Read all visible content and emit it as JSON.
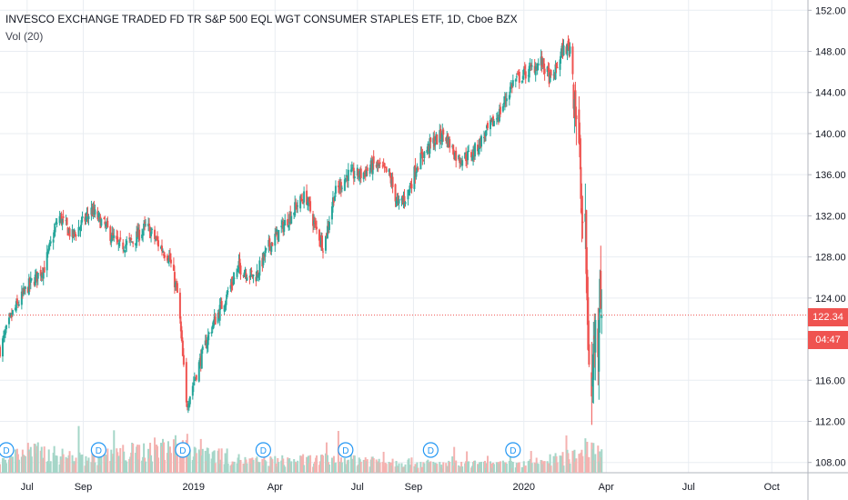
{
  "chart_data": {
    "type": "candlestick",
    "title": "INVESCO EXCHANGE TRADED FD TR S&P 500 EQL WGT CONSUMER STAPLES ETF, 1D, Cboe BZX",
    "indicator": "Vol (20)",
    "ylim": [
      107,
      153
    ],
    "y_ticks": [
      "108.00",
      "112.00",
      "116.00",
      "120.00",
      "124.00",
      "128.00",
      "132.00",
      "136.00",
      "140.00",
      "144.00",
      "148.00",
      "152.00"
    ],
    "y_tick_values": [
      108,
      112,
      116,
      120,
      124,
      128,
      132,
      136,
      140,
      144,
      148,
      152
    ],
    "x_ticks": [
      "Jul",
      "Sep",
      "2019",
      "Apr",
      "Jul",
      "Sep",
      "2020",
      "Apr",
      "Jul",
      "Oct"
    ],
    "x_tick_dates": [
      "2018-07-01",
      "2018-09-01",
      "2019-01-01",
      "2019-04-01",
      "2019-07-01",
      "2019-09-01",
      "2020-01-01",
      "2020-04-01",
      "2020-07-01",
      "2020-10-01"
    ],
    "x_start": "2018-06-01",
    "x_end": "2020-11-10",
    "last_price": "122.34",
    "countdown": "04:47",
    "last_price_value": 122.34,
    "grid": true,
    "price_path": [
      [
        "2018-06-01",
        119
      ],
      [
        "2018-06-15",
        122.5
      ],
      [
        "2018-07-01",
        125
      ],
      [
        "2018-07-20",
        127
      ],
      [
        "2018-08-05",
        132
      ],
      [
        "2018-08-20",
        130
      ],
      [
        "2018-09-10",
        132.5
      ],
      [
        "2018-09-25",
        131
      ],
      [
        "2018-10-10",
        129
      ],
      [
        "2018-10-25",
        129.5
      ],
      [
        "2018-11-10",
        131
      ],
      [
        "2018-11-25",
        129
      ],
      [
        "2018-12-05",
        128
      ],
      [
        "2018-12-15",
        124
      ],
      [
        "2018-12-24",
        113.5
      ],
      [
        "2019-01-05",
        117
      ],
      [
        "2019-01-20",
        121
      ],
      [
        "2019-02-05",
        124
      ],
      [
        "2019-02-20",
        127
      ],
      [
        "2019-03-10",
        126
      ],
      [
        "2019-03-25",
        129
      ],
      [
        "2019-04-10",
        131
      ],
      [
        "2019-04-25",
        133
      ],
      [
        "2019-05-05",
        134
      ],
      [
        "2019-05-15",
        131
      ],
      [
        "2019-05-25",
        129
      ],
      [
        "2019-06-05",
        134
      ],
      [
        "2019-06-20",
        136
      ],
      [
        "2019-07-05",
        136
      ],
      [
        "2019-07-20",
        137
      ],
      [
        "2019-08-05",
        136
      ],
      [
        "2019-08-15",
        133
      ],
      [
        "2019-08-25",
        134
      ],
      [
        "2019-09-05",
        137
      ],
      [
        "2019-09-20",
        139
      ],
      [
        "2019-10-05",
        140
      ],
      [
        "2019-10-20",
        137.5
      ],
      [
        "2019-11-05",
        138
      ],
      [
        "2019-11-20",
        140
      ],
      [
        "2019-12-05",
        142
      ],
      [
        "2019-12-20",
        145
      ],
      [
        "2020-01-05",
        146
      ],
      [
        "2020-01-20",
        147
      ],
      [
        "2020-02-01",
        145
      ],
      [
        "2020-02-12",
        148
      ],
      [
        "2020-02-21",
        148.5
      ],
      [
        "2020-02-26",
        144
      ],
      [
        "2020-03-02",
        138
      ],
      [
        "2020-03-05",
        132
      ],
      [
        "2020-03-09",
        130
      ],
      [
        "2020-03-12",
        120
      ],
      [
        "2020-03-16",
        114
      ],
      [
        "2020-03-19",
        121
      ],
      [
        "2020-03-23",
        120
      ],
      [
        "2020-03-25",
        127
      ],
      [
        "2020-03-27",
        122.34
      ]
    ],
    "volume_path": [
      [
        "2018-06-01",
        0.5
      ],
      [
        "2018-07-01",
        0.8
      ],
      [
        "2018-09-01",
        0.5
      ],
      [
        "2018-12-20",
        1.0
      ],
      [
        "2019-03-01",
        0.4
      ],
      [
        "2019-07-01",
        0.5
      ],
      [
        "2019-10-01",
        0.3
      ],
      [
        "2020-01-01",
        0.3
      ],
      [
        "2020-02-25",
        0.6
      ],
      [
        "2020-03-10",
        1.0
      ],
      [
        "2020-03-27",
        0.8
      ]
    ],
    "dividend_markers": [
      "2018-06-08",
      "2018-09-18",
      "2018-12-20",
      "2019-03-19",
      "2019-06-18",
      "2019-09-20",
      "2019-12-20"
    ],
    "dividend_label": "D",
    "colors": {
      "up": "#26a69a",
      "down": "#ef5350",
      "up_volume": "#a5d6c8",
      "down_volume": "#f4b2b0",
      "grid": "#e9edf2",
      "axis_text": "#131722",
      "dividend": "#2196f3"
    }
  }
}
